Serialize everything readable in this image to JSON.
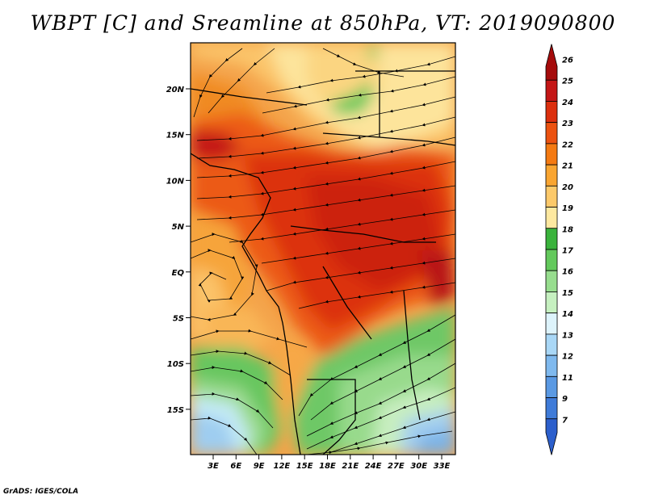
{
  "title": "WBPT [C] and Sreamline at 850hPa, VT: 2019090800",
  "credit": "GrADS: IGES/COLA",
  "lat_ticks": [
    "20N",
    "15N",
    "10N",
    "5N",
    "EQ",
    "5S",
    "10S",
    "15S"
  ],
  "lon_ticks": [
    "3E",
    "6E",
    "9E",
    "12E",
    "15E",
    "18E",
    "21E",
    "24E",
    "27E",
    "30E",
    "33E"
  ],
  "colorbar": {
    "labels": [
      "26",
      "25",
      "24",
      "23",
      "22",
      "21",
      "20",
      "19",
      "18",
      "17",
      "16",
      "15",
      "14",
      "13",
      "12",
      "11",
      "9",
      "7"
    ],
    "colors": [
      "#a50b0b",
      "#c41616",
      "#dc2f0e",
      "#ec5210",
      "#f47a12",
      "#f9a531",
      "#fcc96a",
      "#fde8a0",
      "#3ab33c",
      "#63c95c",
      "#97dd8e",
      "#c6f0c0",
      "#ddf3fb",
      "#a9d7f6",
      "#7fb9ee",
      "#5a99e3",
      "#3f7bd8",
      "#2c5fcc"
    ]
  }
}
